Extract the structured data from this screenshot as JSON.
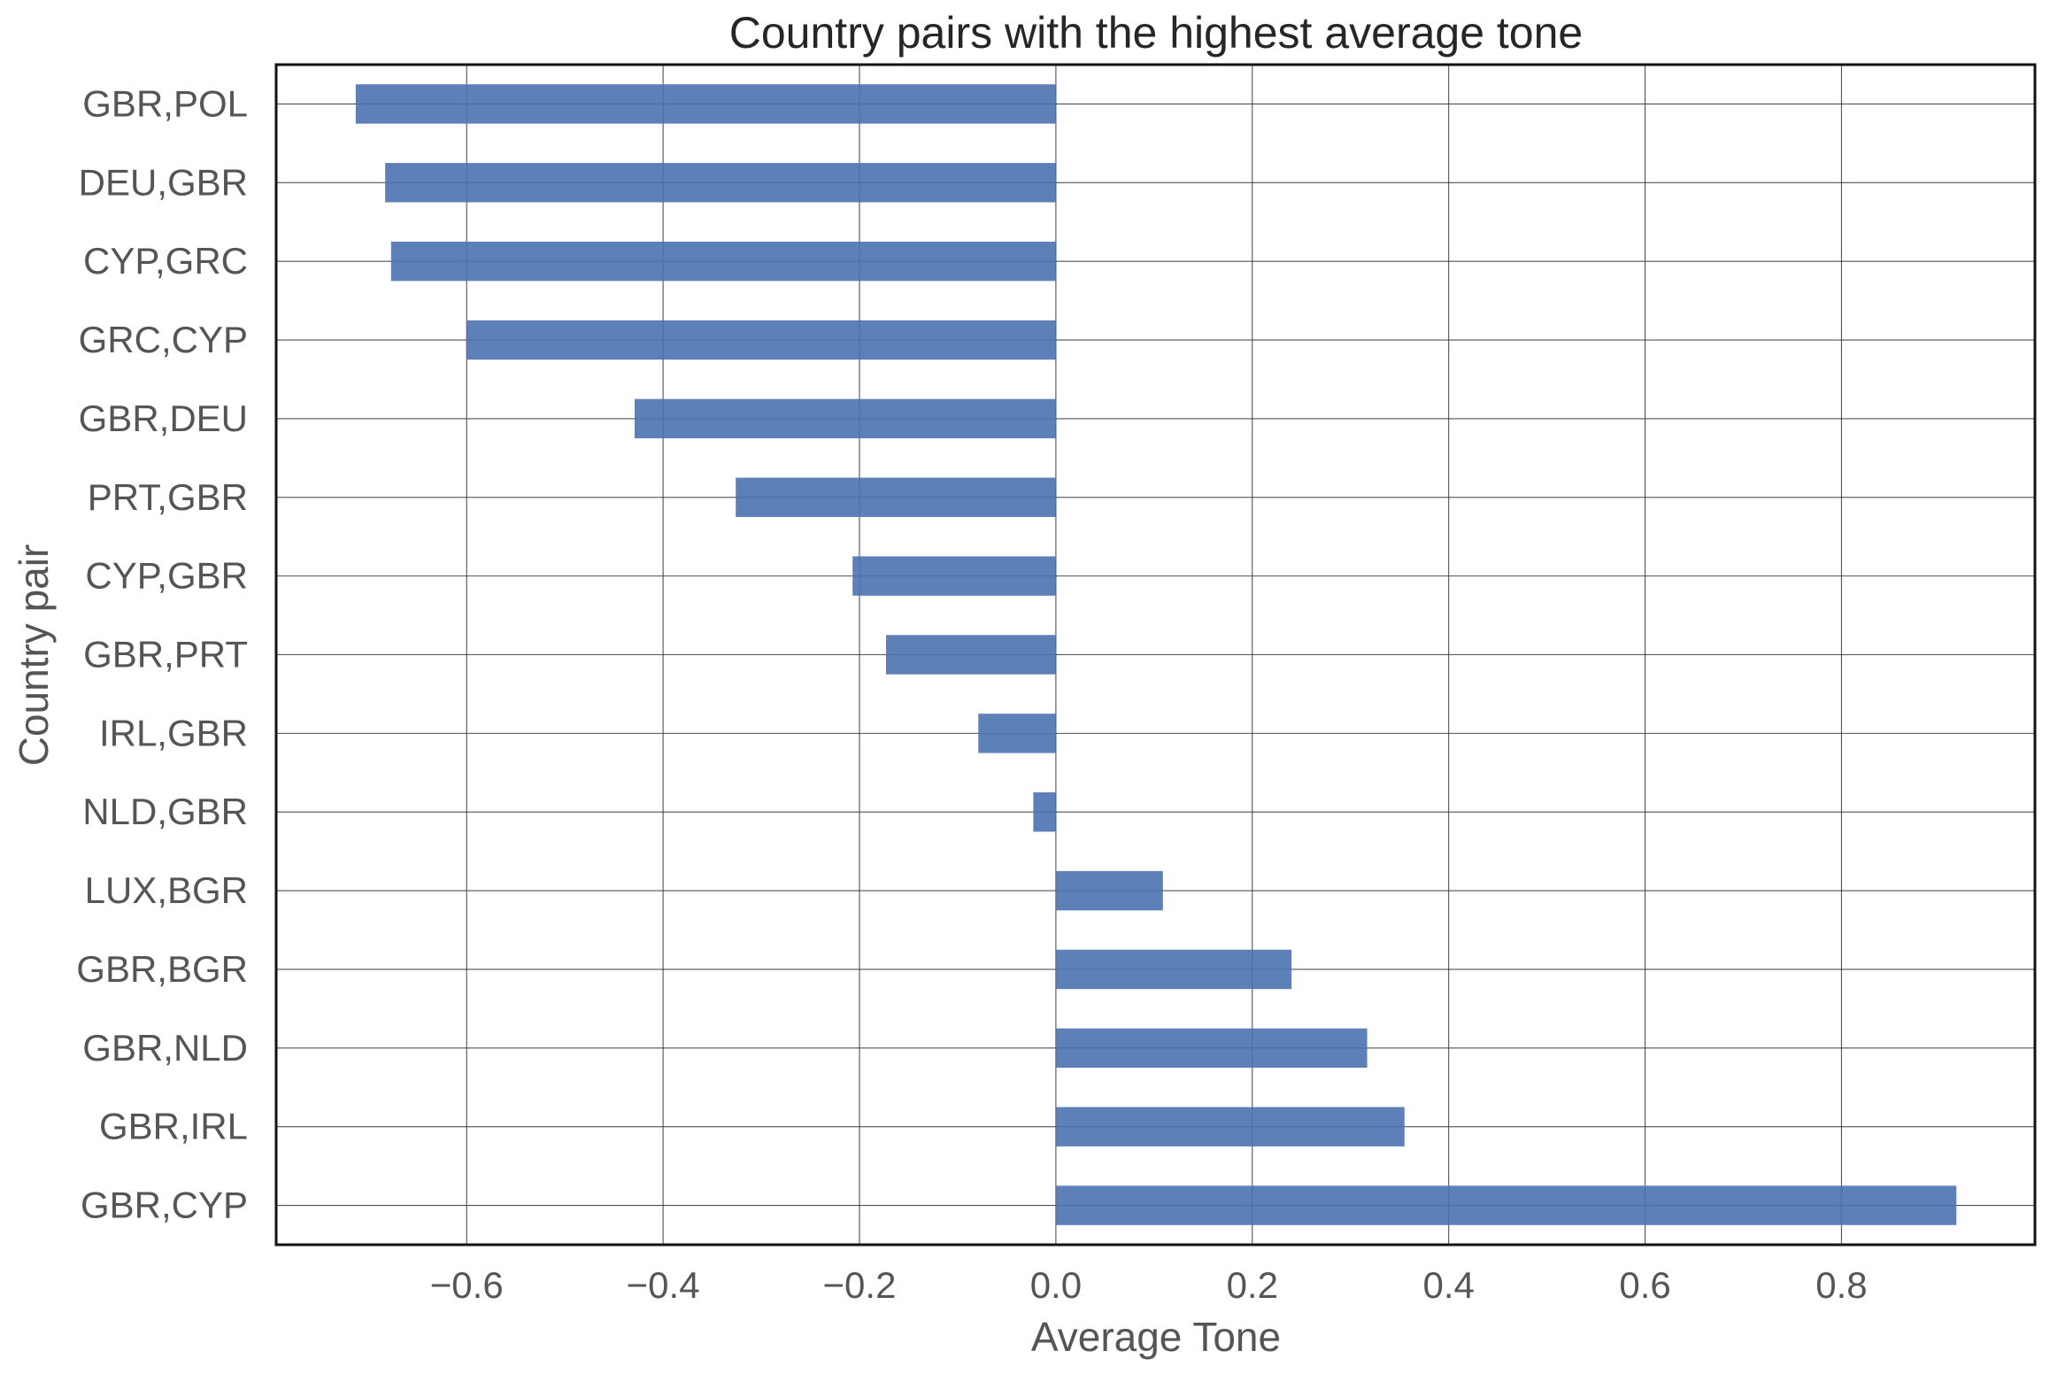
{
  "chart_data": {
    "type": "bar",
    "orientation": "horizontal",
    "title": "Country pairs with the highest average tone",
    "xlabel": "Average Tone",
    "ylabel": "Country pair",
    "categories": [
      "GBR,POL",
      "DEU,GBR",
      "CYP,GRC",
      "GRC,CYP",
      "GBR,DEU",
      "PRT,GBR",
      "CYP,GBR",
      "GBR,PRT",
      "IRL,GBR",
      "NLD,GBR",
      "LUX,BGR",
      "GBR,BGR",
      "GBR,NLD",
      "GBR,IRL",
      "GBR,CYP"
    ],
    "values": [
      -0.713,
      -0.683,
      -0.677,
      -0.6,
      -0.429,
      -0.326,
      -0.207,
      -0.173,
      -0.079,
      -0.023,
      0.109,
      0.24,
      0.317,
      0.355,
      0.917
    ],
    "xlim": [
      -0.794,
      0.997
    ],
    "xticks": [
      -0.6,
      -0.4,
      -0.2,
      0.0,
      0.2,
      0.4,
      0.6,
      0.8
    ],
    "xtick_labels": [
      "−0.6",
      "−0.4",
      "−0.2",
      "0.0",
      "0.2",
      "0.4",
      "0.6",
      "0.8"
    ],
    "grid": true,
    "bar_color": "#4c72b0"
  }
}
